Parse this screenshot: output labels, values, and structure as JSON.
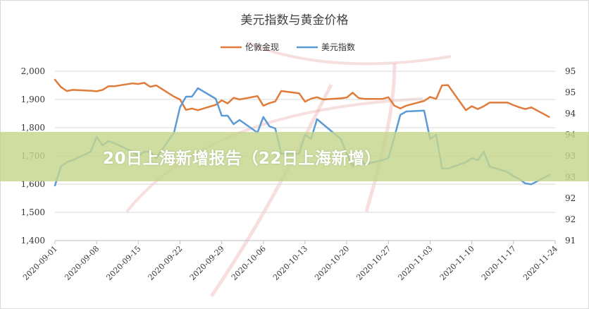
{
  "colors": {
    "gold": "#E07B39",
    "usd": "#5B9BD5",
    "grid": "#d9d9d9",
    "banner": "#c4d68c"
  },
  "banner": {
    "text": "20日上海新增报告（22日上海新增）"
  },
  "chart_data": {
    "type": "line",
    "title": "美元指数与黄金价格",
    "legend_position": "top",
    "grid": true,
    "x_ticks": [
      "2020-09-01",
      "2020-09-08",
      "2020-09-15",
      "2020-09-22",
      "2020-09-29",
      "2020-10-06",
      "2020-10-13",
      "2020-10-20",
      "2020-10-27",
      "2020-11-03",
      "2020-11-10",
      "2020-11-17",
      "2020-11-24"
    ],
    "x_range": [
      "2020-09-01",
      "2020-11-24"
    ],
    "y_left": {
      "ylim": [
        1400,
        2000
      ],
      "ticks": [
        "1,400",
        "1,500",
        "1,600",
        "1,700",
        "1,800",
        "1,900",
        "2,000"
      ]
    },
    "y_right": {
      "ylim": [
        91,
        95
      ],
      "ticks": [
        "91",
        "92",
        "92",
        "93",
        "93",
        "94",
        "94",
        "95",
        "95"
      ]
    },
    "series": [
      {
        "name": "伦敦金现",
        "axis": "left",
        "color": "#E07B39",
        "points": [
          [
            "2020-09-01",
            1970
          ],
          [
            "2020-09-02",
            1944
          ],
          [
            "2020-09-03",
            1930
          ],
          [
            "2020-09-04",
            1934
          ],
          [
            "2020-09-07",
            1931
          ],
          [
            "2020-09-08",
            1929
          ],
          [
            "2020-09-09",
            1934
          ],
          [
            "2020-09-10",
            1947
          ],
          [
            "2020-09-11",
            1947
          ],
          [
            "2020-09-14",
            1957
          ],
          [
            "2020-09-15",
            1955
          ],
          [
            "2020-09-16",
            1959
          ],
          [
            "2020-09-17",
            1945
          ],
          [
            "2020-09-18",
            1950
          ],
          [
            "2020-09-21",
            1910
          ],
          [
            "2020-09-22",
            1900
          ],
          [
            "2020-09-23",
            1863
          ],
          [
            "2020-09-24",
            1868
          ],
          [
            "2020-09-25",
            1862
          ],
          [
            "2020-09-28",
            1881
          ],
          [
            "2020-09-29",
            1897
          ],
          [
            "2020-09-30",
            1886
          ],
          [
            "2020-10-01",
            1906
          ],
          [
            "2020-10-02",
            1900
          ],
          [
            "2020-10-05",
            1912
          ],
          [
            "2020-10-06",
            1878
          ],
          [
            "2020-10-07",
            1887
          ],
          [
            "2020-10-08",
            1893
          ],
          [
            "2020-10-09",
            1930
          ],
          [
            "2020-10-12",
            1922
          ],
          [
            "2020-10-13",
            1892
          ],
          [
            "2020-10-14",
            1903
          ],
          [
            "2020-10-15",
            1908
          ],
          [
            "2020-10-16",
            1900
          ],
          [
            "2020-10-19",
            1904
          ],
          [
            "2020-10-20",
            1907
          ],
          [
            "2020-10-21",
            1924
          ],
          [
            "2020-10-22",
            1905
          ],
          [
            "2020-10-23",
            1902
          ],
          [
            "2020-10-26",
            1902
          ],
          [
            "2020-10-27",
            1908
          ],
          [
            "2020-10-28",
            1878
          ],
          [
            "2020-10-29",
            1868
          ],
          [
            "2020-10-30",
            1878
          ],
          [
            "2020-11-02",
            1895
          ],
          [
            "2020-11-03",
            1909
          ],
          [
            "2020-11-04",
            1902
          ],
          [
            "2020-11-05",
            1950
          ],
          [
            "2020-11-06",
            1951
          ],
          [
            "2020-11-09",
            1862
          ],
          [
            "2020-11-10",
            1876
          ],
          [
            "2020-11-11",
            1866
          ],
          [
            "2020-11-12",
            1876
          ],
          [
            "2020-11-13",
            1889
          ],
          [
            "2020-11-16",
            1889
          ],
          [
            "2020-11-17",
            1880
          ],
          [
            "2020-11-18",
            1872
          ],
          [
            "2020-11-19",
            1866
          ],
          [
            "2020-11-20",
            1872
          ],
          [
            "2020-11-23",
            1838
          ]
        ]
      },
      {
        "name": "美元指数",
        "axis": "right",
        "color": "#5B9BD5",
        "points": [
          [
            "2020-09-01",
            92.3
          ],
          [
            "2020-09-02",
            92.75
          ],
          [
            "2020-09-03",
            92.85
          ],
          [
            "2020-09-04",
            92.9
          ],
          [
            "2020-09-07",
            93.1
          ],
          [
            "2020-09-08",
            93.45
          ],
          [
            "2020-09-09",
            93.25
          ],
          [
            "2020-09-10",
            93.35
          ],
          [
            "2020-09-11",
            93.3
          ],
          [
            "2020-09-14",
            93.1
          ],
          [
            "2020-09-15",
            93.0
          ],
          [
            "2020-09-16",
            93.1
          ],
          [
            "2020-09-17",
            93.1
          ],
          [
            "2020-09-18",
            92.95
          ],
          [
            "2020-09-21",
            93.55
          ],
          [
            "2020-09-22",
            94.15
          ],
          [
            "2020-09-23",
            94.4
          ],
          [
            "2020-09-24",
            94.4
          ],
          [
            "2020-09-25",
            94.6
          ],
          [
            "2020-09-28",
            94.35
          ],
          [
            "2020-09-29",
            93.95
          ],
          [
            "2020-09-30",
            93.95
          ],
          [
            "2020-10-01",
            93.75
          ],
          [
            "2020-10-02",
            93.85
          ],
          [
            "2020-10-05",
            93.55
          ],
          [
            "2020-10-06",
            93.92
          ],
          [
            "2020-10-07",
            93.7
          ],
          [
            "2020-10-08",
            93.65
          ],
          [
            "2020-10-09",
            93.05
          ],
          [
            "2020-10-12",
            93.05
          ],
          [
            "2020-10-13",
            93.5
          ],
          [
            "2020-10-14",
            93.4
          ],
          [
            "2020-10-15",
            93.87
          ],
          [
            "2020-10-16",
            93.75
          ],
          [
            "2020-10-19",
            93.4
          ],
          [
            "2020-10-20",
            93.05
          ],
          [
            "2020-10-21",
            92.75
          ],
          [
            "2020-10-22",
            93.0
          ],
          [
            "2020-10-23",
            92.8
          ],
          [
            "2020-10-26",
            92.9
          ],
          [
            "2020-10-27",
            92.95
          ],
          [
            "2020-10-28",
            93.45
          ],
          [
            "2020-10-29",
            93.97
          ],
          [
            "2020-10-30",
            94.05
          ],
          [
            "2020-11-02",
            94.07
          ],
          [
            "2020-11-03",
            93.4
          ],
          [
            "2020-11-04",
            93.5
          ],
          [
            "2020-11-05",
            92.7
          ],
          [
            "2020-11-06",
            92.7
          ],
          [
            "2020-11-09",
            92.85
          ],
          [
            "2020-11-10",
            92.95
          ],
          [
            "2020-11-11",
            92.9
          ],
          [
            "2020-11-12",
            93.1
          ],
          [
            "2020-11-13",
            92.75
          ],
          [
            "2020-11-16",
            92.62
          ],
          [
            "2020-11-17",
            92.52
          ],
          [
            "2020-11-18",
            92.45
          ],
          [
            "2020-11-19",
            92.35
          ],
          [
            "2020-11-20",
            92.33
          ],
          [
            "2020-11-23",
            92.55
          ]
        ]
      }
    ]
  }
}
